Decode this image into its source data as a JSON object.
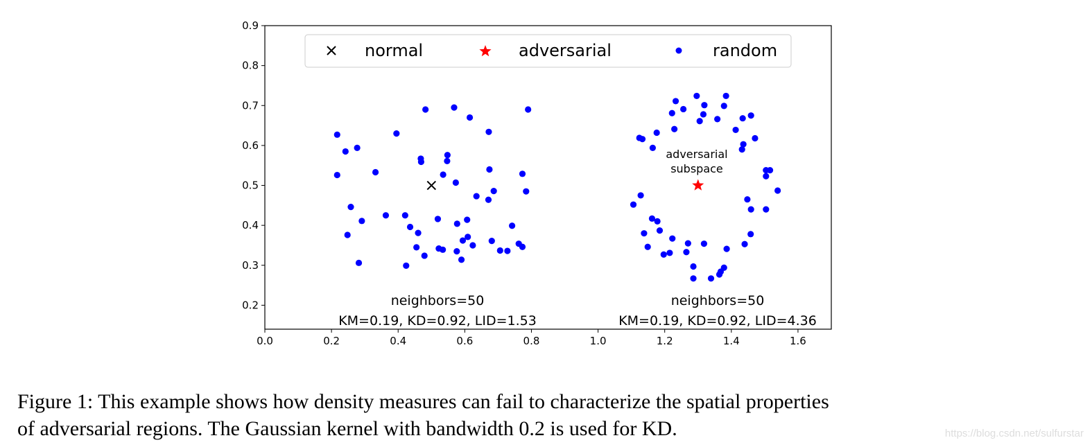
{
  "chart_data": {
    "type": "scatter",
    "xlim": [
      0,
      1.7
    ],
    "ylim": [
      0.14,
      0.9
    ],
    "xticks": [
      "0.0",
      "0.2",
      "0.4",
      "0.6",
      "0.8",
      "1.0",
      "1.2",
      "1.4",
      "1.6"
    ],
    "yticks": [
      "0.2",
      "0.3",
      "0.4",
      "0.5",
      "0.6",
      "0.7",
      "0.8",
      "0.9"
    ],
    "grid": false,
    "legend_placement": "top-center",
    "series": [
      {
        "name": "normal",
        "marker": "x",
        "color": "#000000",
        "points": [
          [
            0.5,
            0.5
          ]
        ]
      },
      {
        "name": "adversarial",
        "marker": "star",
        "color": "#ff0000",
        "points": [
          [
            1.3,
            0.5
          ]
        ]
      },
      {
        "name": "random",
        "marker": "dot",
        "color": "#0000ff",
        "points": [
          [
            0.482,
            0.69
          ],
          [
            0.568,
            0.695
          ],
          [
            0.615,
            0.67
          ],
          [
            0.79,
            0.69
          ],
          [
            0.217,
            0.627
          ],
          [
            0.395,
            0.63
          ],
          [
            0.672,
            0.634
          ],
          [
            0.242,
            0.585
          ],
          [
            0.277,
            0.594
          ],
          [
            0.468,
            0.567
          ],
          [
            0.469,
            0.559
          ],
          [
            0.548,
            0.576
          ],
          [
            0.547,
            0.561
          ],
          [
            0.217,
            0.526
          ],
          [
            0.332,
            0.533
          ],
          [
            0.535,
            0.527
          ],
          [
            0.674,
            0.54
          ],
          [
            0.773,
            0.529
          ],
          [
            0.573,
            0.507
          ],
          [
            0.635,
            0.473
          ],
          [
            0.687,
            0.486
          ],
          [
            0.671,
            0.464
          ],
          [
            0.784,
            0.485
          ],
          [
            0.258,
            0.446
          ],
          [
            0.291,
            0.411
          ],
          [
            0.248,
            0.376
          ],
          [
            0.282,
            0.306
          ],
          [
            0.363,
            0.425
          ],
          [
            0.421,
            0.425
          ],
          [
            0.436,
            0.396
          ],
          [
            0.46,
            0.381
          ],
          [
            0.455,
            0.345
          ],
          [
            0.479,
            0.324
          ],
          [
            0.424,
            0.299
          ],
          [
            0.519,
            0.416
          ],
          [
            0.577,
            0.404
          ],
          [
            0.607,
            0.414
          ],
          [
            0.522,
            0.342
          ],
          [
            0.534,
            0.339
          ],
          [
            0.594,
            0.362
          ],
          [
            0.609,
            0.371
          ],
          [
            0.624,
            0.35
          ],
          [
            0.576,
            0.335
          ],
          [
            0.59,
            0.314
          ],
          [
            0.681,
            0.361
          ],
          [
            0.742,
            0.399
          ],
          [
            0.706,
            0.337
          ],
          [
            0.728,
            0.336
          ],
          [
            0.762,
            0.354
          ],
          [
            0.773,
            0.346
          ],
          [
            1.296,
            0.724
          ],
          [
            1.384,
            0.724
          ],
          [
            1.233,
            0.711
          ],
          [
            1.319,
            0.701
          ],
          [
            1.378,
            0.699
          ],
          [
            1.256,
            0.691
          ],
          [
            1.222,
            0.681
          ],
          [
            1.316,
            0.678
          ],
          [
            1.305,
            0.661
          ],
          [
            1.358,
            0.666
          ],
          [
            1.434,
            0.668
          ],
          [
            1.459,
            0.675
          ],
          [
            1.229,
            0.641
          ],
          [
            1.413,
            0.639
          ],
          [
            1.176,
            0.632
          ],
          [
            1.124,
            0.619
          ],
          [
            1.133,
            0.616
          ],
          [
            1.471,
            0.618
          ],
          [
            1.164,
            0.594
          ],
          [
            1.436,
            0.603
          ],
          [
            1.432,
            0.59
          ],
          [
            1.504,
            0.538
          ],
          [
            1.516,
            0.538
          ],
          [
            1.504,
            0.523
          ],
          [
            1.539,
            0.487
          ],
          [
            1.128,
            0.475
          ],
          [
            1.106,
            0.452
          ],
          [
            1.448,
            0.465
          ],
          [
            1.459,
            0.44
          ],
          [
            1.504,
            0.44
          ],
          [
            1.162,
            0.417
          ],
          [
            1.178,
            0.41
          ],
          [
            1.138,
            0.38
          ],
          [
            1.185,
            0.387
          ],
          [
            1.458,
            0.378
          ],
          [
            1.223,
            0.367
          ],
          [
            1.27,
            0.355
          ],
          [
            1.318,
            0.354
          ],
          [
            1.44,
            0.353
          ],
          [
            1.149,
            0.346
          ],
          [
            1.197,
            0.327
          ],
          [
            1.215,
            0.331
          ],
          [
            1.265,
            0.333
          ],
          [
            1.386,
            0.341
          ],
          [
            1.286,
            0.297
          ],
          [
            1.378,
            0.294
          ],
          [
            1.368,
            0.284
          ],
          [
            1.364,
            0.277
          ],
          [
            1.286,
            0.267
          ],
          [
            1.339,
            0.267
          ]
        ]
      }
    ],
    "annotations": {
      "left_line1": "neighbors=50",
      "left_line2": "KM=0.19, KD=0.92, LID=1.53",
      "right_line1": "neighbors=50",
      "right_line2": "KM=0.19, KD=0.92, LID=4.36",
      "subspace_line1": "adversarial",
      "subspace_line2": "subspace"
    }
  },
  "caption": {
    "line1": "Figure 1: This example shows how density measures can fail to characterize the spatial properties",
    "line2": "of adversarial regions. The Gaussian kernel with bandwidth 0.2 is used for KD."
  },
  "watermark": "https://blog.csdn.net/sulfurstar"
}
